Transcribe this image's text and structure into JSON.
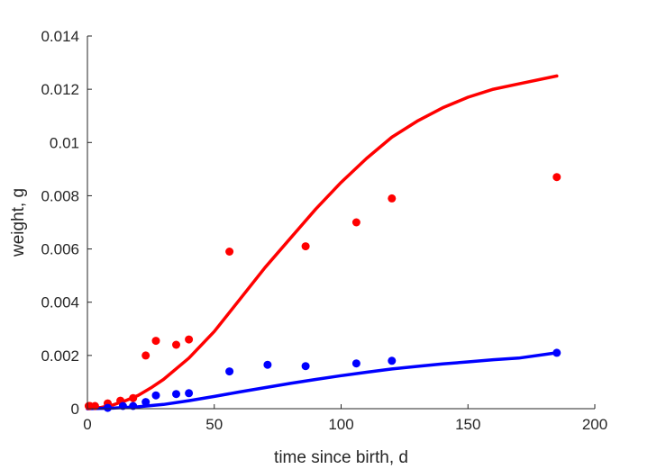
{
  "chart_data": {
    "type": "scatter",
    "xlabel": "time since birth, d",
    "ylabel": "weight, g",
    "xlim": [
      0,
      200
    ],
    "ylim": [
      0,
      0.014
    ],
    "xticks": [
      0,
      50,
      100,
      150,
      200
    ],
    "xtick_labels": [
      "0",
      "50",
      "100",
      "150",
      "200"
    ],
    "yticks": [
      0,
      0.002,
      0.004,
      0.006,
      0.008,
      0.01,
      0.012,
      0.014
    ],
    "ytick_labels": [
      "0",
      "0.002",
      "0.004",
      "0.006",
      "0.008",
      "0.01",
      "0.012",
      "0.014"
    ],
    "grid": false,
    "legend": "none",
    "series": [
      {
        "kind": "points",
        "color": "#ff0000",
        "x": [
          0.5,
          1,
          3,
          8,
          13,
          18,
          23,
          27,
          35,
          40,
          56,
          86,
          106,
          120,
          185
        ],
        "y": [
          0.0001,
          0.0001,
          0.0001,
          0.0002,
          0.0003,
          0.0004,
          0.002,
          0.00255,
          0.0024,
          0.0026,
          0.0059,
          0.0061,
          0.007,
          0.0079,
          0.0087
        ]
      },
      {
        "kind": "points",
        "color": "#0000ff",
        "x": [
          8,
          14,
          18,
          23,
          27,
          35,
          40,
          56,
          71,
          86,
          106,
          120,
          185
        ],
        "y": [
          3e-05,
          0.0001,
          0.0001,
          0.00025,
          0.0005,
          0.00055,
          0.00058,
          0.0014,
          0.00165,
          0.0016,
          0.0017,
          0.0018,
          0.0021
        ]
      },
      {
        "kind": "line",
        "color": "#ff0000",
        "x": [
          0,
          5,
          10,
          15,
          20,
          25,
          30,
          40,
          50,
          60,
          70,
          80,
          90,
          100,
          110,
          120,
          130,
          140,
          150,
          160,
          170,
          185
        ],
        "y": [
          0,
          4e-05,
          0.00014,
          0.0003,
          0.0005,
          0.00078,
          0.0011,
          0.0019,
          0.0029,
          0.0041,
          0.0053,
          0.0064,
          0.0075,
          0.0085,
          0.0094,
          0.0102,
          0.0108,
          0.0113,
          0.0117,
          0.012,
          0.0122,
          0.0125
        ]
      },
      {
        "kind": "line",
        "color": "#0000ff",
        "x": [
          0,
          10,
          20,
          30,
          40,
          50,
          60,
          70,
          80,
          90,
          100,
          110,
          120,
          130,
          140,
          150,
          160,
          170,
          185
        ],
        "y": [
          0,
          2e-05,
          7e-05,
          0.00016,
          0.0003,
          0.00046,
          0.00063,
          0.00079,
          0.00095,
          0.0011,
          0.00124,
          0.00137,
          0.00149,
          0.00159,
          0.00168,
          0.00176,
          0.00184,
          0.0019,
          0.0021
        ]
      }
    ]
  }
}
